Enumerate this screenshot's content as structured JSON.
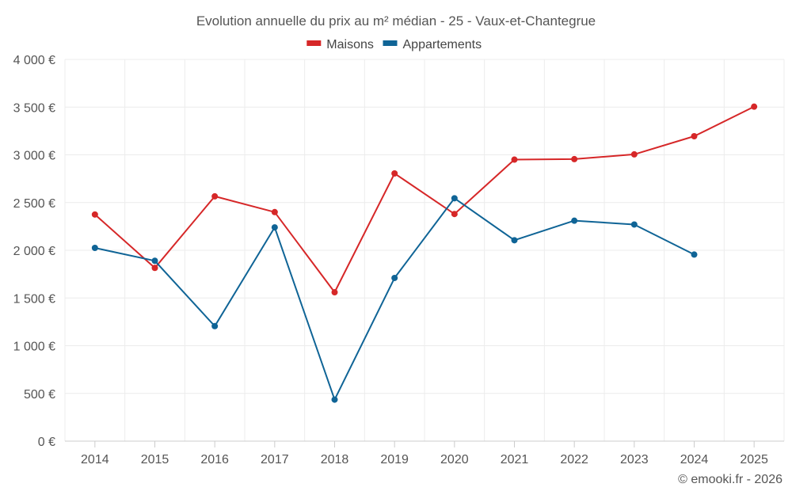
{
  "chart_data": {
    "type": "line",
    "title": "Evolution annuelle du prix au m² médian - 25 - Vaux-et-Chantegrue",
    "categories": [
      "2014",
      "2015",
      "2016",
      "2017",
      "2018",
      "2019",
      "2020",
      "2021",
      "2022",
      "2023",
      "2024",
      "2025"
    ],
    "ylim": [
      0,
      4000
    ],
    "yticks": [
      {
        "value": 0,
        "label": "0 €"
      },
      {
        "value": 500,
        "label": "500 €"
      },
      {
        "value": 1000,
        "label": "1 000 €"
      },
      {
        "value": 1500,
        "label": "1 500 €"
      },
      {
        "value": 2000,
        "label": "2 000 €"
      },
      {
        "value": 2500,
        "label": "2 500 €"
      },
      {
        "value": 3000,
        "label": "3 000 €"
      },
      {
        "value": 3500,
        "label": "3 500 €"
      },
      {
        "value": 4000,
        "label": "4 000 €"
      }
    ],
    "grid": true,
    "legend_position": "top-center",
    "series": [
      {
        "name": "Maisons",
        "color": "#d62728",
        "values": [
          2375,
          1815,
          2565,
          2400,
          1560,
          2805,
          2380,
          2950,
          2955,
          3005,
          3195,
          3505
        ]
      },
      {
        "name": "Appartements",
        "color": "#0f6496",
        "values": [
          2025,
          1890,
          1205,
          2240,
          435,
          1710,
          2545,
          2105,
          2310,
          2270,
          1955,
          null
        ]
      }
    ]
  },
  "credit": "© emooki.fr - 2026"
}
